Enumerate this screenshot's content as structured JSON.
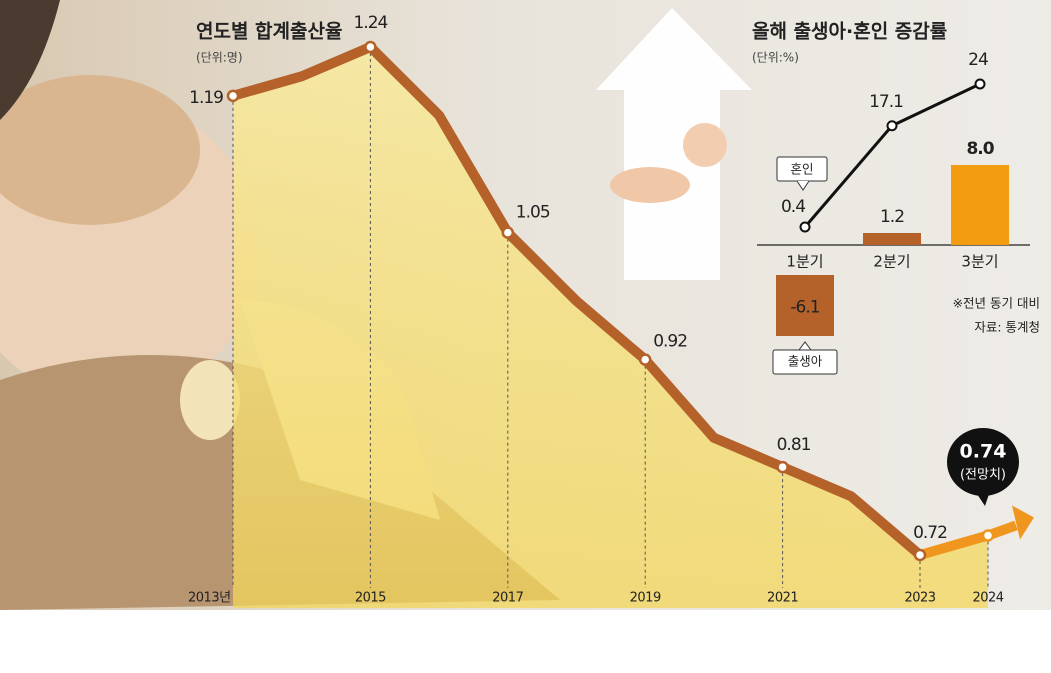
{
  "chart_data": [
    {
      "type": "line",
      "title": "연도별 합계출산율",
      "subtitle": "(단위:명)",
      "categories": [
        "2013년",
        null,
        "2015",
        null,
        "2017",
        null,
        "2019",
        null,
        "2021",
        null,
        "2023",
        "2024"
      ],
      "values": [
        1.19,
        1.21,
        1.24,
        1.17,
        1.05,
        0.98,
        0.92,
        0.84,
        0.81,
        0.78,
        0.72,
        0.74
      ],
      "value_labels": [
        "1.19",
        null,
        "1.24",
        null,
        "1.05",
        null,
        "0.92",
        null,
        "0.81",
        null,
        "0.72",
        "0.74"
      ],
      "color": "#b5612a",
      "forecast_color": "#f0961e",
      "annotation": "(전망치)"
    },
    {
      "type": "bar",
      "title": "올해 출생아·혼인 증감률",
      "subtitle": "(단위:%)",
      "categories": [
        "1분기",
        "2분기",
        "3분기"
      ],
      "series": [
        {
          "name": "출생아",
          "colors": [
            "#b5612a",
            "#b5612a",
            "#f39c12"
          ],
          "values": [
            -6.1,
            1.2,
            8.0
          ],
          "value_labels": [
            "-6.1",
            "1.2",
            "8.0"
          ]
        },
        {
          "name": "혼인",
          "type": "line",
          "color": "#111111",
          "values": [
            0.4,
            17.1,
            24
          ]
        }
      ],
      "notes": [
        "※전년 동기 대비",
        "자료: 통계청"
      ]
    }
  ]
}
